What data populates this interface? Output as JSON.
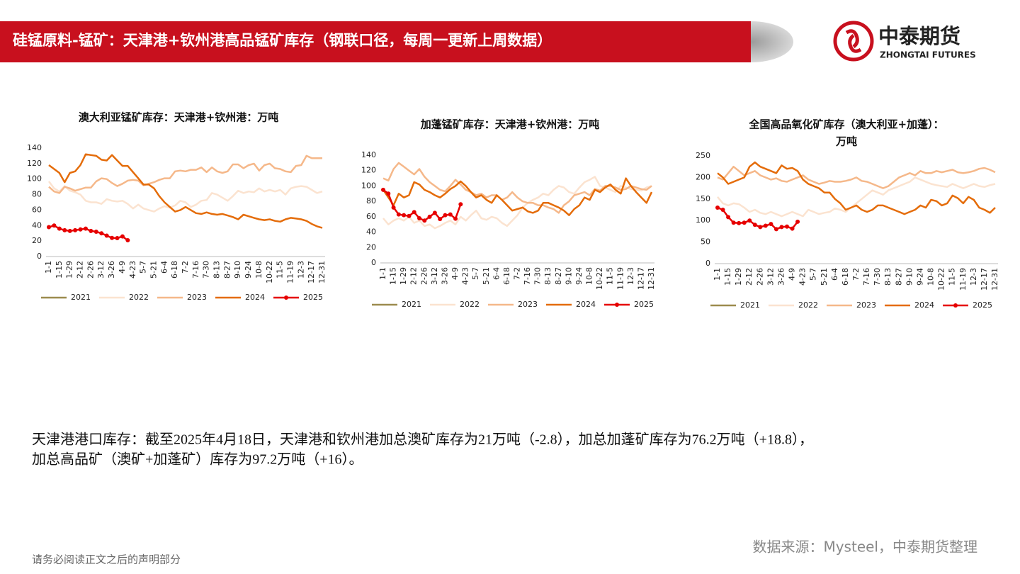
{
  "header": {
    "title": "硅锰原料-锰矿：天津港+钦州港高品锰矿库存（钢联口径，每周一更新上周数据）"
  },
  "logo": {
    "name": "中泰期货",
    "subtitle": "ZHONGTAI FUTURES"
  },
  "summary": [
    "天津港港口库存：截至2025年4月18日，天津港和钦州港加总澳矿库存为21万吨（-2.8），加总加蓬矿库存为76.2万吨（+18.8），",
    "加总高品矿（澳矿+加蓬矿）库存为97.2万吨（+16）。"
  ],
  "source": "数据来源：Mysteel，中泰期货整理",
  "footer": "请务必阅读正文之后的声明部分",
  "chart_data": [
    {
      "type": "line",
      "title": "澳大利亚锰矿库存：天津港+钦州港：万吨",
      "categories": [
        "1-1",
        null,
        "1-15",
        null,
        "1-29",
        null,
        "2-12",
        null,
        "2-26",
        null,
        "3-12",
        null,
        "3-26",
        null,
        "4-9",
        null,
        "4-23",
        null,
        "5-7",
        null,
        "5-21",
        null,
        "6-4",
        null,
        "6-18",
        null,
        "7-2",
        null,
        "7-16",
        null,
        "7-30",
        null,
        "8-13",
        null,
        "8-27",
        null,
        "9-10",
        null,
        "9-24",
        null,
        "10-8",
        null,
        "10-22",
        null,
        "11-5",
        null,
        "11-19",
        null,
        "12-3",
        null,
        "12-17",
        null,
        "12-31"
      ],
      "ylim": [
        0,
        140
      ],
      "yticks": [
        0,
        20,
        40,
        60,
        80,
        100,
        120,
        140
      ],
      "series": [
        {
          "name": "2021",
          "color": "#9c8b4e",
          "values": [
            null,
            null,
            null,
            null,
            null,
            null,
            null,
            null,
            null,
            null,
            null,
            null,
            null,
            null,
            null,
            null,
            null,
            null,
            null,
            null,
            null,
            null,
            null,
            null,
            null,
            null,
            null,
            null,
            null,
            null,
            null,
            null,
            null,
            null,
            null,
            null,
            null,
            null,
            null,
            null,
            null,
            null,
            null,
            null,
            null,
            null,
            null,
            null,
            null,
            null,
            null,
            null,
            null
          ]
        },
        {
          "name": "2022",
          "color": "#fbe3d0",
          "values": [
            97,
            88,
            84,
            91,
            85,
            83,
            80,
            72,
            70,
            70,
            68,
            74,
            72,
            71,
            72,
            68,
            62,
            67,
            62,
            60,
            58,
            62,
            65,
            63,
            66,
            72,
            70,
            64,
            67,
            72,
            73,
            82,
            80,
            76,
            72,
            78,
            85,
            82,
            84,
            83,
            88,
            84,
            86,
            84,
            86,
            80,
            88,
            90,
            91,
            90,
            86,
            82,
            84
          ]
        },
        {
          "name": "2023",
          "color": "#f5b88a",
          "values": [
            90,
            84,
            82,
            90,
            88,
            85,
            87,
            89,
            89,
            97,
            101,
            100,
            95,
            91,
            94,
            98,
            99,
            98,
            92,
            94,
            96,
            99,
            101,
            101,
            110,
            111,
            110,
            112,
            112,
            115,
            109,
            115,
            110,
            108,
            110,
            119,
            119,
            114,
            118,
            120,
            111,
            118,
            120,
            114,
            113,
            110,
            109,
            117,
            118,
            130,
            127,
            127,
            127
          ]
        },
        {
          "name": "2024",
          "color": "#e46c0a",
          "values": [
            118,
            113,
            108,
            96,
            108,
            110,
            118,
            132,
            131,
            130,
            125,
            124,
            131,
            124,
            117,
            117,
            109,
            101,
            93,
            93,
            88,
            78,
            70,
            64,
            58,
            60,
            64,
            60,
            56,
            55,
            57,
            55,
            54,
            55,
            53,
            51,
            48,
            54,
            52,
            50,
            48,
            47,
            48,
            46,
            45,
            48,
            50,
            49,
            48,
            46,
            42,
            39,
            37
          ]
        },
        {
          "name": "2025",
          "color": "#e60000",
          "marker": true,
          "values": [
            38,
            40,
            36,
            34,
            33,
            34,
            35,
            36,
            33,
            32,
            30,
            27,
            24,
            23.8,
            26,
            21,
            null,
            null,
            null,
            null,
            null,
            null,
            null,
            null,
            null,
            null,
            null,
            null,
            null,
            null,
            null,
            null,
            null,
            null,
            null,
            null,
            null,
            null,
            null,
            null,
            null,
            null,
            null,
            null,
            null,
            null,
            null,
            null,
            null,
            null,
            null,
            null,
            null
          ]
        }
      ]
    },
    {
      "type": "line",
      "title": "加蓬锰矿库存：天津港+钦州港：万吨",
      "categories": [
        "1-1",
        null,
        "1-15",
        null,
        "1-29",
        null,
        "2-12",
        null,
        "2-26",
        null,
        "3-12",
        null,
        "3-26",
        null,
        "4-9",
        null,
        "4-23",
        null,
        "5-7",
        null,
        "5-21",
        null,
        "6-4",
        null,
        "6-18",
        null,
        "7-2",
        null,
        "7-16",
        null,
        "7-30",
        null,
        "8-13",
        null,
        "8-27",
        null,
        "9-10",
        null,
        "9-24",
        null,
        "10-8",
        null,
        "10-22",
        null,
        "11-5",
        null,
        "11-19",
        null,
        "12-3",
        null,
        "12-17",
        null,
        "12-31"
      ],
      "ylim": [
        0,
        140
      ],
      "yticks": [
        0,
        20,
        40,
        60,
        80,
        100,
        120,
        140
      ],
      "series": [
        {
          "name": "2021",
          "color": "#9c8b4e",
          "values": [
            null,
            null,
            null,
            null,
            null,
            null,
            null,
            null,
            null,
            null,
            null,
            null,
            null,
            null,
            null,
            null,
            null,
            null,
            null,
            null,
            null,
            null,
            null,
            null,
            null,
            null,
            null,
            null,
            null,
            null,
            null,
            null,
            null,
            null,
            null,
            null,
            null,
            null,
            null,
            null,
            null,
            null,
            null,
            null,
            null,
            null,
            null,
            null,
            null,
            null,
            null,
            null,
            null
          ]
        },
        {
          "name": "2022",
          "color": "#fbe3d0",
          "values": [
            58,
            50,
            55,
            58,
            55,
            60,
            52,
            55,
            48,
            50,
            45,
            48,
            52,
            55,
            50,
            60,
            55,
            62,
            68,
            58,
            56,
            60,
            58,
            52,
            48,
            55,
            62,
            72,
            78,
            82,
            85,
            90,
            88,
            95,
            100,
            98,
            92,
            90,
            98,
            105,
            108,
            112,
            100,
            98,
            95,
            92,
            100,
            98,
            96,
            95,
            94,
            98,
            100
          ]
        },
        {
          "name": "2023",
          "color": "#f5b88a",
          "values": [
            110,
            107,
            122,
            130,
            125,
            120,
            115,
            122,
            112,
            105,
            100,
            95,
            93,
            100,
            108,
            102,
            95,
            92,
            88,
            90,
            85,
            88,
            88,
            82,
            85,
            92,
            85,
            80,
            78,
            78,
            75,
            75,
            72,
            70,
            65,
            75,
            80,
            88,
            90,
            92,
            88,
            96,
            94,
            100,
            100,
            98,
            95,
            96,
            100,
            98,
            96,
            95,
            100
          ]
        },
        {
          "name": "2024",
          "color": "#e46c0a",
          "values": [
            95,
            85,
            75,
            90,
            85,
            88,
            105,
            102,
            95,
            92,
            88,
            85,
            90,
            96,
            100,
            106,
            100,
            92,
            85,
            88,
            82,
            78,
            88,
            82,
            75,
            68,
            70,
            72,
            67,
            65,
            68,
            78,
            78,
            75,
            72,
            68,
            62,
            70,
            75,
            85,
            82,
            95,
            92,
            98,
            102,
            95,
            90,
            110,
            100,
            92,
            85,
            78,
            92
          ]
        },
        {
          "name": "2025",
          "color": "#e60000",
          "marker": true,
          "values": [
            95,
            90,
            72,
            63,
            62,
            61,
            66,
            58,
            55,
            60,
            65,
            57,
            62,
            63,
            57.4,
            76.2,
            null,
            null,
            null,
            null,
            null,
            null,
            null,
            null,
            null,
            null,
            null,
            null,
            null,
            null,
            null,
            null,
            null,
            null,
            null,
            null,
            null,
            null,
            null,
            null,
            null,
            null,
            null,
            null,
            null,
            null,
            null,
            null,
            null,
            null,
            null,
            null,
            null
          ]
        }
      ]
    },
    {
      "type": "line",
      "title": [
        "全国高品氧化矿库存（澳大利亚+加蓬）：",
        "万吨"
      ],
      "categories": [
        "1-1",
        null,
        "1-15",
        null,
        "1-29",
        null,
        "2-12",
        null,
        "2-26",
        null,
        "3-12",
        null,
        "3-26",
        null,
        "4-9",
        null,
        "4-23",
        null,
        "5-7",
        null,
        "5-21",
        null,
        "6-4",
        null,
        "6-18",
        null,
        "7-2",
        null,
        "7-16",
        null,
        "7-30",
        null,
        "8-13",
        null,
        "8-27",
        null,
        "9-10",
        null,
        "9-24",
        null,
        "10-8",
        null,
        "10-22",
        null,
        "11-5",
        null,
        "11-19",
        null,
        "12-3",
        null,
        "12-17",
        null,
        "12-31"
      ],
      "ylim": [
        0,
        250
      ],
      "yticks": [
        0,
        50,
        100,
        150,
        200,
        250
      ],
      "series": [
        {
          "name": "2021",
          "color": "#9c8b4e",
          "values": [
            null,
            null,
            null,
            null,
            null,
            null,
            null,
            null,
            null,
            null,
            null,
            null,
            null,
            null,
            null,
            null,
            null,
            null,
            null,
            null,
            null,
            null,
            null,
            null,
            null,
            null,
            null,
            null,
            null,
            null,
            null,
            null,
            null,
            null,
            null,
            null,
            null,
            null,
            null,
            null,
            null,
            null,
            null,
            null,
            null,
            null,
            null,
            null,
            null,
            null,
            null,
            null,
            null
          ]
        },
        {
          "name": "2022",
          "color": "#fbe3d0",
          "values": [
            155,
            140,
            135,
            140,
            138,
            130,
            120,
            125,
            118,
            115,
            120,
            115,
            110,
            115,
            120,
            115,
            110,
            125,
            120,
            115,
            118,
            120,
            128,
            125,
            120,
            130,
            140,
            150,
            160,
            170,
            165,
            160,
            170,
            175,
            180,
            185,
            190,
            200,
            195,
            190,
            185,
            182,
            180,
            178,
            185,
            180,
            175,
            180,
            185,
            180,
            178,
            182,
            185
          ]
        },
        {
          "name": "2023",
          "color": "#f5b88a",
          "values": [
            200,
            195,
            210,
            225,
            215,
            205,
            210,
            215,
            205,
            200,
            195,
            198,
            192,
            190,
            195,
            200,
            205,
            195,
            190,
            185,
            188,
            192,
            190,
            190,
            192,
            195,
            200,
            192,
            190,
            185,
            180,
            175,
            180,
            190,
            200,
            205,
            210,
            205,
            215,
            210,
            210,
            215,
            212,
            215,
            218,
            212,
            210,
            212,
            215,
            220,
            222,
            218,
            212
          ]
        },
        {
          "name": "2024",
          "color": "#e46c0a",
          "values": [
            210,
            200,
            185,
            190,
            195,
            200,
            225,
            235,
            225,
            220,
            215,
            210,
            228,
            220,
            222,
            215,
            195,
            185,
            180,
            175,
            165,
            165,
            150,
            140,
            125,
            130,
            135,
            125,
            120,
            125,
            135,
            135,
            130,
            125,
            120,
            115,
            120,
            125,
            135,
            130,
            148,
            145,
            135,
            140,
            158,
            152,
            140,
            155,
            148,
            130,
            125,
            118,
            130
          ]
        },
        {
          "name": "2025",
          "color": "#e60000",
          "marker": true,
          "values": [
            130,
            125,
            108,
            95,
            94,
            95,
            100,
            90,
            85,
            88,
            92,
            80,
            85,
            86,
            81.2,
            97.2,
            null,
            null,
            null,
            null,
            null,
            null,
            null,
            null,
            null,
            null,
            null,
            null,
            null,
            null,
            null,
            null,
            null,
            null,
            null,
            null,
            null,
            null,
            null,
            null,
            null,
            null,
            null,
            null,
            null,
            null,
            null,
            null,
            null,
            null,
            null,
            null,
            null
          ]
        }
      ]
    }
  ]
}
